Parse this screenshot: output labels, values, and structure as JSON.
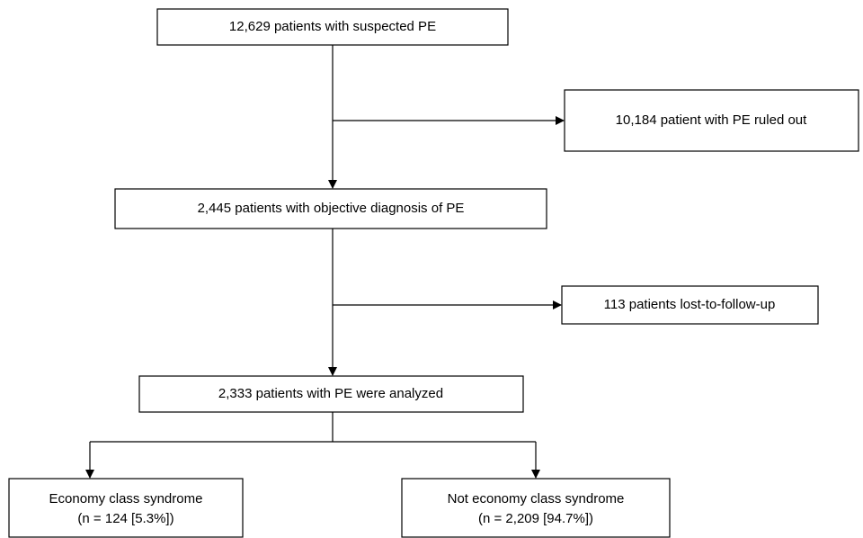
{
  "nodes": [
    {
      "label": "12,629 patients with suspected PE"
    },
    {
      "label": "10,184 patient with PE ruled out"
    },
    {
      "label": "2,445 patients with objective diagnosis of PE"
    },
    {
      "label": "113 patients lost-to-follow-up"
    },
    {
      "label": "2,333 patients with PE were analyzed"
    },
    {
      "label": "Economy class syndrome",
      "detail": "(n = 124 [5.3%])"
    },
    {
      "label": "Not economy class syndrome",
      "detail": "(n = 2,209 [94.7%])"
    }
  ]
}
